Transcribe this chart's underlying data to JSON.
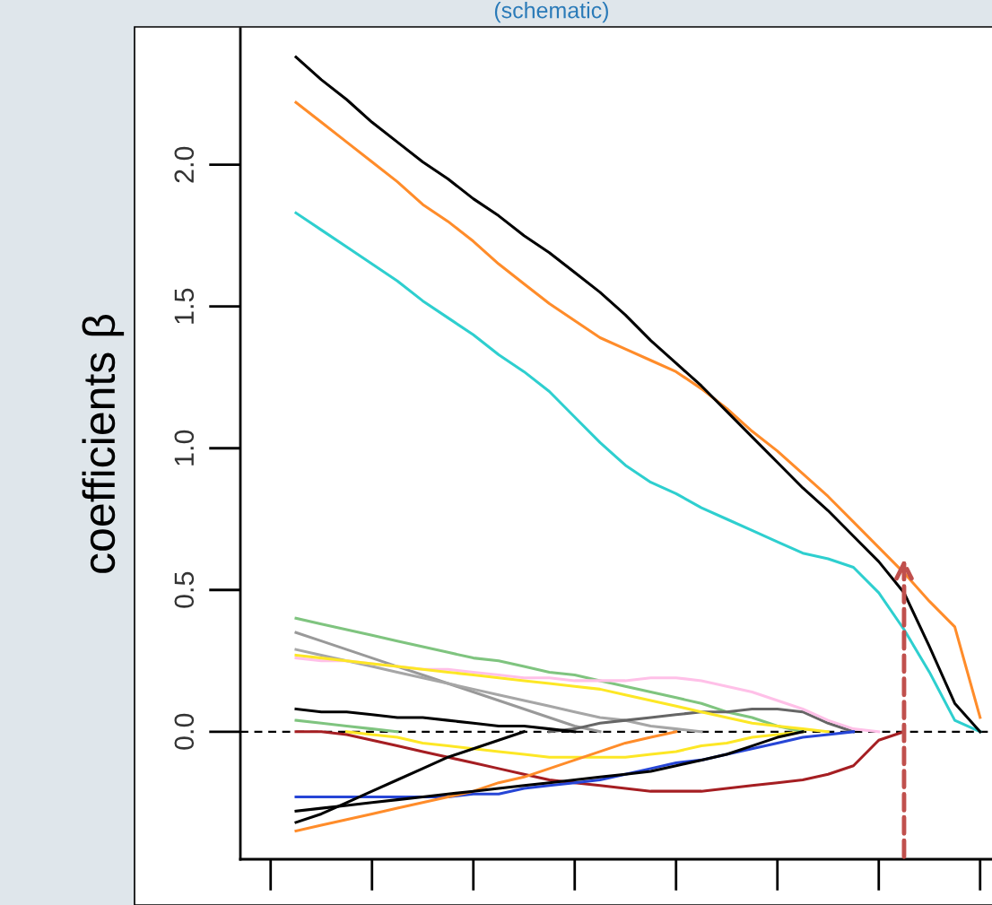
{
  "chart_data": {
    "type": "line",
    "title": "(schematic)",
    "ylabel": "coefficients β",
    "categories": [
      null,
      null,
      null,
      null,
      null,
      null,
      null,
      null,
      null,
      null,
      null,
      null,
      null,
      null,
      null,
      null,
      null,
      null,
      null,
      null,
      null,
      null,
      null,
      null,
      null,
      null,
      null,
      null
    ],
    "ylim": [
      -0.45,
      2.48
    ],
    "yticks": [
      {
        "value": 0.0,
        "label": "0.0"
      },
      {
        "value": 0.5,
        "label": "0.5"
      },
      {
        "value": 1.0,
        "label": "1.0"
      },
      {
        "value": 1.5,
        "label": "1.5"
      },
      {
        "value": 2.0,
        "label": "2.0"
      }
    ],
    "line_style": "solid",
    "ref_lines": [
      {
        "axis": "y",
        "value": 0,
        "color": "#000000",
        "line_style": "dashed"
      }
    ],
    "series": [
      {
        "color": "#fde725",
        "values": [
          null,
          null,
          0,
          -0.01,
          -0.02,
          -0.04,
          -0.05,
          -0.06,
          -0.07,
          -0.08,
          -0.09,
          -0.09,
          -0.09,
          -0.09,
          -0.08,
          -0.07,
          -0.05,
          -0.04,
          -0.02,
          -0.01,
          0,
          null,
          null,
          null,
          null,
          null,
          null,
          null
        ]
      },
      {
        "color": "#7fc47f",
        "values": [
          0.04,
          0.03,
          0.02,
          0.01,
          0,
          null,
          null,
          null,
          null,
          null,
          null,
          null,
          null,
          null,
          null,
          null,
          null,
          null,
          null,
          null,
          null,
          null,
          null,
          null,
          null,
          null,
          null,
          null
        ]
      },
      {
        "color": "#7fc47f",
        "values": [
          0.4,
          0.38,
          0.36,
          0.34,
          0.32,
          0.3,
          0.28,
          0.26,
          0.25,
          0.23,
          0.21,
          0.2,
          0.18,
          0.16,
          0.14,
          0.12,
          0.1,
          0.07,
          0.05,
          0.02,
          0,
          null,
          null,
          null,
          null,
          null,
          null,
          null
        ]
      },
      {
        "color": "#999999",
        "values": [
          0.35,
          0.32,
          0.29,
          0.26,
          0.23,
          0.2,
          0.17,
          0.14,
          0.11,
          0.08,
          0.05,
          0.02,
          0,
          null,
          null,
          null,
          null,
          null,
          null,
          null,
          null,
          null,
          null,
          null,
          null,
          null,
          null,
          null
        ]
      },
      {
        "color": "#a6a6a6",
        "values": [
          0.29,
          0.27,
          0.25,
          0.23,
          0.21,
          0.19,
          0.17,
          0.15,
          0.13,
          0.11,
          0.09,
          0.07,
          0.05,
          0.04,
          0.02,
          0.01,
          0,
          null,
          null,
          null,
          null,
          null,
          null,
          null,
          null,
          null,
          null,
          null
        ]
      },
      {
        "color": "#666666",
        "values": [
          null,
          null,
          null,
          null,
          null,
          null,
          null,
          null,
          null,
          null,
          0,
          0.01,
          0.03,
          0.04,
          0.05,
          0.06,
          0.07,
          0.07,
          0.08,
          0.08,
          0.07,
          0.03,
          0,
          null,
          null,
          null,
          null,
          null
        ]
      },
      {
        "color": "#ffc0e8",
        "values": [
          0.26,
          0.25,
          0.25,
          0.24,
          0.23,
          0.22,
          0.22,
          0.21,
          0.2,
          0.19,
          0.19,
          0.18,
          0.18,
          0.18,
          0.19,
          0.19,
          0.18,
          0.16,
          0.14,
          0.11,
          0.08,
          0.04,
          0.01,
          0,
          null,
          null,
          null,
          null
        ]
      },
      {
        "color": "#fde725",
        "values": [
          0.27,
          0.26,
          0.25,
          0.24,
          0.23,
          0.22,
          0.21,
          0.2,
          0.19,
          0.18,
          0.17,
          0.16,
          0.15,
          0.13,
          0.11,
          0.09,
          0.07,
          0.05,
          0.03,
          0.02,
          0.01,
          0,
          null,
          null,
          null,
          null,
          null,
          null
        ]
      },
      {
        "color": "#000000",
        "values": [
          0.08,
          0.07,
          0.07,
          0.06,
          0.05,
          0.05,
          0.04,
          0.03,
          0.02,
          0.02,
          0.01,
          0,
          null,
          null,
          null,
          null,
          null,
          null,
          null,
          null,
          null,
          null,
          null,
          null,
          null,
          null,
          null,
          null
        ]
      },
      {
        "color": "#a51e22",
        "values": [
          0,
          0,
          -0.01,
          -0.03,
          -0.05,
          -0.07,
          -0.09,
          -0.11,
          -0.13,
          -0.15,
          -0.17,
          -0.18,
          -0.19,
          -0.2,
          -0.21,
          -0.21,
          -0.21,
          -0.2,
          -0.19,
          -0.18,
          -0.17,
          -0.15,
          -0.12,
          -0.03,
          0,
          null,
          null,
          null
        ]
      },
      {
        "color": "#2645d6",
        "values": [
          -0.23,
          -0.23,
          -0.23,
          -0.23,
          -0.23,
          -0.23,
          -0.23,
          -0.22,
          -0.22,
          -0.2,
          -0.19,
          -0.18,
          -0.17,
          -0.15,
          -0.13,
          -0.11,
          -0.1,
          -0.08,
          -0.06,
          -0.04,
          -0.02,
          -0.01,
          0,
          null,
          null,
          null,
          null,
          null
        ]
      },
      {
        "color": "#ff8c2a",
        "values": [
          -0.35,
          -0.33,
          -0.31,
          -0.29,
          -0.27,
          -0.25,
          -0.23,
          -0.21,
          -0.18,
          -0.16,
          -0.13,
          -0.1,
          -0.07,
          -0.04,
          -0.02,
          0,
          null,
          null,
          null,
          null,
          null,
          null,
          null,
          null,
          null,
          null,
          null,
          null
        ]
      },
      {
        "color": "#000000",
        "values": [
          -0.28,
          -0.27,
          -0.26,
          -0.25,
          -0.24,
          -0.23,
          -0.22,
          -0.21,
          -0.2,
          -0.19,
          -0.18,
          -0.17,
          -0.16,
          -0.15,
          -0.14,
          -0.12,
          -0.1,
          -0.08,
          -0.05,
          -0.02,
          0,
          null,
          null,
          null,
          null,
          null,
          null,
          null
        ]
      },
      {
        "color": "#000000",
        "values": [
          -0.32,
          -0.29,
          -0.25,
          -0.21,
          -0.17,
          -0.13,
          -0.09,
          -0.06,
          -0.03,
          0,
          null,
          null,
          null,
          null,
          null,
          null,
          null,
          null,
          null,
          null,
          null,
          null,
          null,
          null,
          null,
          null,
          null,
          null
        ]
      },
      {
        "color": "#2ecfcf",
        "values": [
          1.83,
          1.77,
          1.71,
          1.65,
          1.59,
          1.52,
          1.46,
          1.4,
          1.33,
          1.27,
          1.2,
          1.11,
          1.02,
          0.94,
          0.88,
          0.84,
          0.79,
          0.75,
          0.71,
          0.67,
          0.63,
          0.61,
          0.58,
          0.49,
          0.36,
          0.21,
          0.04,
          0
        ]
      },
      {
        "color": "#ff8c2a",
        "values": [
          2.22,
          2.15,
          2.08,
          2.01,
          1.94,
          1.86,
          1.8,
          1.73,
          1.65,
          1.58,
          1.51,
          1.45,
          1.39,
          1.35,
          1.31,
          1.27,
          1.21,
          1.14,
          1.06,
          0.99,
          0.91,
          0.83,
          0.74,
          0.65,
          0.56,
          0.46,
          0.37,
          0.05
        ]
      },
      {
        "color": "#000000",
        "values": [
          2.38,
          2.3,
          2.23,
          2.15,
          2.08,
          2.01,
          1.95,
          1.88,
          1.82,
          1.75,
          1.69,
          1.62,
          1.55,
          1.47,
          1.38,
          1.3,
          1.22,
          1.13,
          1.04,
          0.95,
          0.86,
          0.78,
          0.69,
          0.6,
          0.49,
          0.3,
          0.1,
          0
        ]
      }
    ]
  }
}
